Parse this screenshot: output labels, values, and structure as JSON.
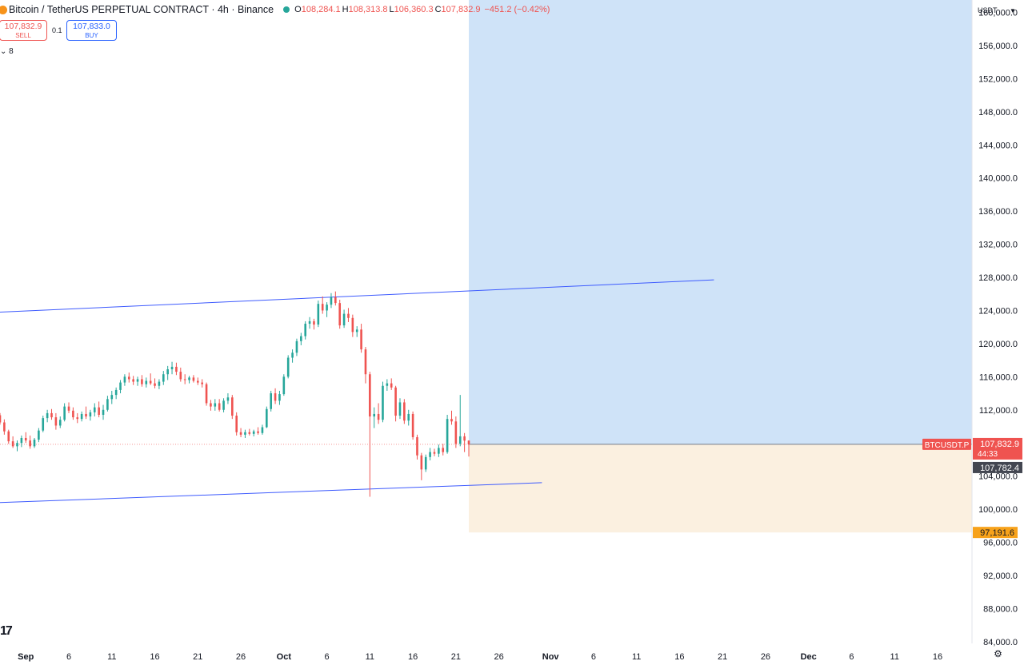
{
  "header": {
    "title": "Bitcoin / TetherUS PERPETUAL CONTRACT · 4h · Binance",
    "open_label": "O",
    "open": "108,284.1",
    "high_label": "H",
    "high": "108,313.8",
    "low_label": "L",
    "low": "106,360.3",
    "close_label": "C",
    "close": "107,832.9",
    "change": "−451.2 (−0.42%)"
  },
  "trade": {
    "sell_price": "107,832.9",
    "sell_label": "SELL",
    "quantity": "0.1",
    "buy_price": "107,833.0",
    "buy_label": "BUY"
  },
  "indicator_toggle": "8",
  "currency": "USDT",
  "colors": {
    "up": "#26a69a",
    "down": "#ef5350",
    "trendline": "#3d5afe",
    "profit_zone": "#cfe3f8",
    "loss_zone": "#fbf0e0"
  },
  "chart_data": {
    "type": "candlestick",
    "symbol": "BTCUSDT.P",
    "y_axis": {
      "labels": [
        "160,000.0",
        "156,000.0",
        "152,000.0",
        "148,000.0",
        "144,000.0",
        "140,000.0",
        "136,000.0",
        "132,000.0",
        "128,000.0",
        "124,000.0",
        "120,000.0",
        "116,000.0",
        "112,000.0",
        "108,000.0",
        "104,000.0",
        "100,000.0",
        "96,000.0",
        "92,000.0",
        "88,000.0",
        "84,000.0"
      ],
      "values": [
        160000,
        156000,
        152000,
        148000,
        144000,
        140000,
        136000,
        132000,
        128000,
        124000,
        120000,
        116000,
        112000,
        108000,
        104000,
        100000,
        96000,
        92000,
        88000,
        84000
      ]
    },
    "ylim": [
      83500,
      161500
    ],
    "x_axis": {
      "labels": [
        "Sep",
        "6",
        "11",
        "16",
        "21",
        "26",
        "Oct",
        "6",
        "11",
        "16",
        "21",
        "26",
        "Nov",
        "6",
        "11",
        "16",
        "21",
        "26",
        "Dec",
        "6",
        "11",
        "16"
      ],
      "dates": [
        "2025-09-01",
        "2025-09-06",
        "2025-09-11",
        "2025-09-16",
        "2025-09-21",
        "2025-09-26",
        "2025-10-01",
        "2025-10-06",
        "2025-10-11",
        "2025-10-16",
        "2025-10-21",
        "2025-10-26",
        "2025-11-01",
        "2025-11-06",
        "2025-11-11",
        "2025-11-16",
        "2025-11-21",
        "2025-11-26",
        "2025-12-01",
        "2025-12-06",
        "2025-12-11",
        "2025-12-16"
      ]
    },
    "xlim": [
      "2025-08-29",
      "2025-12-20"
    ],
    "last_price": "107,832.9",
    "countdown": "44:33",
    "crosshair_price": "107,782.4",
    "stop_price": "97,191.6",
    "position": {
      "entry": 107832.9,
      "target": 161500,
      "stop": 97191.6,
      "start": "2025-10-22T12:00",
      "end": "2025-12-20"
    },
    "trendlines": [
      {
        "start": [
          "2025-08-29",
          123800
        ],
        "end": [
          "2025-11-20",
          127700
        ]
      },
      {
        "start": [
          "2025-08-29",
          100800
        ],
        "end": [
          "2025-10-31",
          103200
        ]
      }
    ],
    "candles": [
      {
        "t": "2025-08-29T00:00",
        "o": 111350,
        "h": 111620,
        "l": 110220,
        "c": 110480
      },
      {
        "t": "2025-08-29T12:00",
        "o": 110480,
        "h": 110850,
        "l": 109000,
        "c": 109400
      },
      {
        "t": "2025-08-30T00:00",
        "o": 109400,
        "h": 109600,
        "l": 107900,
        "c": 108200
      },
      {
        "t": "2025-08-30T12:00",
        "o": 108200,
        "h": 108800,
        "l": 107400,
        "c": 107600
      },
      {
        "t": "2025-08-31T00:00",
        "o": 107600,
        "h": 108300,
        "l": 107000,
        "c": 108000
      },
      {
        "t": "2025-08-31T12:00",
        "o": 108000,
        "h": 108900,
        "l": 107500,
        "c": 108600
      },
      {
        "t": "2025-09-01T00:00",
        "o": 108600,
        "h": 109300,
        "l": 108000,
        "c": 108300
      },
      {
        "t": "2025-09-01T12:00",
        "o": 108300,
        "h": 108900,
        "l": 107300,
        "c": 107600
      },
      {
        "t": "2025-09-02T00:00",
        "o": 107600,
        "h": 108600,
        "l": 107400,
        "c": 108400
      },
      {
        "t": "2025-09-02T12:00",
        "o": 108400,
        "h": 109800,
        "l": 108100,
        "c": 109500
      },
      {
        "t": "2025-09-03T00:00",
        "o": 109500,
        "h": 111300,
        "l": 109300,
        "c": 111000
      },
      {
        "t": "2025-09-03T12:00",
        "o": 111000,
        "h": 112000,
        "l": 110500,
        "c": 111600
      },
      {
        "t": "2025-09-04T00:00",
        "o": 111600,
        "h": 112100,
        "l": 110800,
        "c": 111100
      },
      {
        "t": "2025-09-04T12:00",
        "o": 111100,
        "h": 111600,
        "l": 109600,
        "c": 110100
      },
      {
        "t": "2025-09-05T00:00",
        "o": 110100,
        "h": 111200,
        "l": 109800,
        "c": 110800
      },
      {
        "t": "2025-09-05T12:00",
        "o": 110800,
        "h": 112800,
        "l": 110600,
        "c": 112400
      },
      {
        "t": "2025-09-06T00:00",
        "o": 112400,
        "h": 112900,
        "l": 111600,
        "c": 111900
      },
      {
        "t": "2025-09-06T12:00",
        "o": 111900,
        "h": 112300,
        "l": 110800,
        "c": 111100
      },
      {
        "t": "2025-09-07T00:00",
        "o": 111100,
        "h": 111600,
        "l": 110400,
        "c": 110900
      },
      {
        "t": "2025-09-07T12:00",
        "o": 110900,
        "h": 111800,
        "l": 110600,
        "c": 111500
      },
      {
        "t": "2025-09-08T00:00",
        "o": 111500,
        "h": 112400,
        "l": 110900,
        "c": 111200
      },
      {
        "t": "2025-09-08T12:00",
        "o": 111200,
        "h": 112000,
        "l": 110700,
        "c": 111700
      },
      {
        "t": "2025-09-09T00:00",
        "o": 111700,
        "h": 112800,
        "l": 111200,
        "c": 112300
      },
      {
        "t": "2025-09-09T12:00",
        "o": 112300,
        "h": 113000,
        "l": 111100,
        "c": 111400
      },
      {
        "t": "2025-09-10T00:00",
        "o": 111400,
        "h": 112600,
        "l": 110800,
        "c": 112000
      },
      {
        "t": "2025-09-10T12:00",
        "o": 112000,
        "h": 113700,
        "l": 111800,
        "c": 113300
      },
      {
        "t": "2025-09-11T00:00",
        "o": 113300,
        "h": 114300,
        "l": 112700,
        "c": 113800
      },
      {
        "t": "2025-09-11T12:00",
        "o": 113800,
        "h": 114700,
        "l": 113300,
        "c": 114400
      },
      {
        "t": "2025-09-12T00:00",
        "o": 114400,
        "h": 115600,
        "l": 114000,
        "c": 115300
      },
      {
        "t": "2025-09-12T12:00",
        "o": 115300,
        "h": 116300,
        "l": 114900,
        "c": 116000
      },
      {
        "t": "2025-09-13T00:00",
        "o": 116000,
        "h": 116500,
        "l": 115300,
        "c": 115700
      },
      {
        "t": "2025-09-13T12:00",
        "o": 115700,
        "h": 116100,
        "l": 115000,
        "c": 115400
      },
      {
        "t": "2025-09-14T00:00",
        "o": 115400,
        "h": 116000,
        "l": 114900,
        "c": 115700
      },
      {
        "t": "2025-09-14T12:00",
        "o": 115700,
        "h": 116200,
        "l": 114800,
        "c": 115100
      },
      {
        "t": "2025-09-15T00:00",
        "o": 115100,
        "h": 115900,
        "l": 114700,
        "c": 115500
      },
      {
        "t": "2025-09-15T12:00",
        "o": 115500,
        "h": 116400,
        "l": 115000,
        "c": 115200
      },
      {
        "t": "2025-09-16T00:00",
        "o": 115200,
        "h": 115800,
        "l": 114600,
        "c": 114900
      },
      {
        "t": "2025-09-16T12:00",
        "o": 114900,
        "h": 115700,
        "l": 114500,
        "c": 115400
      },
      {
        "t": "2025-09-17T00:00",
        "o": 115400,
        "h": 116700,
        "l": 115000,
        "c": 116300
      },
      {
        "t": "2025-09-17T12:00",
        "o": 116300,
        "h": 117300,
        "l": 115600,
        "c": 116900
      },
      {
        "t": "2025-09-18T00:00",
        "o": 116900,
        "h": 117800,
        "l": 116300,
        "c": 117200
      },
      {
        "t": "2025-09-18T12:00",
        "o": 117200,
        "h": 117700,
        "l": 116200,
        "c": 116600
      },
      {
        "t": "2025-09-19T00:00",
        "o": 116600,
        "h": 117100,
        "l": 115400,
        "c": 115700
      },
      {
        "t": "2025-09-19T12:00",
        "o": 115700,
        "h": 116300,
        "l": 115100,
        "c": 115600
      },
      {
        "t": "2025-09-20T00:00",
        "o": 115600,
        "h": 116100,
        "l": 115200,
        "c": 115900
      },
      {
        "t": "2025-09-20T12:00",
        "o": 115900,
        "h": 116200,
        "l": 115300,
        "c": 115500
      },
      {
        "t": "2025-09-21T00:00",
        "o": 115500,
        "h": 115900,
        "l": 115000,
        "c": 115300
      },
      {
        "t": "2025-09-21T12:00",
        "o": 115300,
        "h": 115700,
        "l": 114700,
        "c": 115100
      },
      {
        "t": "2025-09-22T00:00",
        "o": 115100,
        "h": 115300,
        "l": 112500,
        "c": 112800
      },
      {
        "t": "2025-09-22T12:00",
        "o": 112800,
        "h": 113200,
        "l": 111900,
        "c": 112400
      },
      {
        "t": "2025-09-23T00:00",
        "o": 112400,
        "h": 113300,
        "l": 111900,
        "c": 112800
      },
      {
        "t": "2025-09-23T12:00",
        "o": 112800,
        "h": 113300,
        "l": 111800,
        "c": 112000
      },
      {
        "t": "2025-09-24T00:00",
        "o": 112000,
        "h": 113400,
        "l": 111700,
        "c": 113100
      },
      {
        "t": "2025-09-24T12:00",
        "o": 113100,
        "h": 114000,
        "l": 112700,
        "c": 113500
      },
      {
        "t": "2025-09-25T00:00",
        "o": 113500,
        "h": 113800,
        "l": 110900,
        "c": 111300
      },
      {
        "t": "2025-09-25T12:00",
        "o": 111300,
        "h": 111700,
        "l": 108900,
        "c": 109300
      },
      {
        "t": "2025-09-26T00:00",
        "o": 109300,
        "h": 109800,
        "l": 108700,
        "c": 109000
      },
      {
        "t": "2025-09-26T12:00",
        "o": 109000,
        "h": 109600,
        "l": 108600,
        "c": 109300
      },
      {
        "t": "2025-09-27T00:00",
        "o": 109300,
        "h": 109700,
        "l": 108900,
        "c": 109100
      },
      {
        "t": "2025-09-27T12:00",
        "o": 109100,
        "h": 109600,
        "l": 108800,
        "c": 109400
      },
      {
        "t": "2025-09-28T00:00",
        "o": 109400,
        "h": 109900,
        "l": 109000,
        "c": 109200
      },
      {
        "t": "2025-09-28T12:00",
        "o": 109200,
        "h": 110200,
        "l": 109000,
        "c": 109900
      },
      {
        "t": "2025-09-29T00:00",
        "o": 109900,
        "h": 112400,
        "l": 109800,
        "c": 112100
      },
      {
        "t": "2025-09-29T12:00",
        "o": 112100,
        "h": 114300,
        "l": 111800,
        "c": 114000
      },
      {
        "t": "2025-09-30T00:00",
        "o": 114000,
        "h": 114600,
        "l": 112700,
        "c": 113100
      },
      {
        "t": "2025-09-30T12:00",
        "o": 113100,
        "h": 114300,
        "l": 112600,
        "c": 113900
      },
      {
        "t": "2025-10-01T00:00",
        "o": 113900,
        "h": 116300,
        "l": 113700,
        "c": 116000
      },
      {
        "t": "2025-10-01T12:00",
        "o": 116000,
        "h": 118600,
        "l": 115800,
        "c": 118300
      },
      {
        "t": "2025-10-02T00:00",
        "o": 118300,
        "h": 119300,
        "l": 117700,
        "c": 118900
      },
      {
        "t": "2025-10-02T12:00",
        "o": 118900,
        "h": 120600,
        "l": 118500,
        "c": 120300
      },
      {
        "t": "2025-10-03T00:00",
        "o": 120300,
        "h": 121300,
        "l": 119800,
        "c": 120900
      },
      {
        "t": "2025-10-03T12:00",
        "o": 120900,
        "h": 122700,
        "l": 120500,
        "c": 122400
      },
      {
        "t": "2025-10-04T00:00",
        "o": 122400,
        "h": 123200,
        "l": 121800,
        "c": 122700
      },
      {
        "t": "2025-10-04T12:00",
        "o": 122700,
        "h": 123000,
        "l": 121700,
        "c": 122300
      },
      {
        "t": "2025-10-05T00:00",
        "o": 122300,
        "h": 125200,
        "l": 122000,
        "c": 124800
      },
      {
        "t": "2025-10-05T12:00",
        "o": 124800,
        "h": 125700,
        "l": 123600,
        "c": 124000
      },
      {
        "t": "2025-10-06T00:00",
        "o": 124000,
        "h": 125000,
        "l": 123200,
        "c": 124700
      },
      {
        "t": "2025-10-06T12:00",
        "o": 124700,
        "h": 126100,
        "l": 124300,
        "c": 125600
      },
      {
        "t": "2025-10-07T00:00",
        "o": 125600,
        "h": 126300,
        "l": 124600,
        "c": 124900
      },
      {
        "t": "2025-10-07T12:00",
        "o": 124900,
        "h": 125300,
        "l": 121800,
        "c": 122200
      },
      {
        "t": "2025-10-08T00:00",
        "o": 122200,
        "h": 124100,
        "l": 121900,
        "c": 123600
      },
      {
        "t": "2025-10-08T12:00",
        "o": 123600,
        "h": 124300,
        "l": 122600,
        "c": 123100
      },
      {
        "t": "2025-10-09T00:00",
        "o": 123100,
        "h": 123500,
        "l": 120800,
        "c": 121400
      },
      {
        "t": "2025-10-09T12:00",
        "o": 121400,
        "h": 122100,
        "l": 120800,
        "c": 121700
      },
      {
        "t": "2025-10-10T00:00",
        "o": 121700,
        "h": 122400,
        "l": 118900,
        "c": 119300
      },
      {
        "t": "2025-10-10T12:00",
        "o": 119300,
        "h": 119600,
        "l": 115200,
        "c": 116300
      },
      {
        "t": "2025-10-11T00:00",
        "o": 116300,
        "h": 116600,
        "l": 101500,
        "c": 111200
      },
      {
        "t": "2025-10-11T12:00",
        "o": 111200,
        "h": 112300,
        "l": 109800,
        "c": 111500
      },
      {
        "t": "2025-10-12T00:00",
        "o": 111500,
        "h": 112800,
        "l": 110300,
        "c": 110800
      },
      {
        "t": "2025-10-12T12:00",
        "o": 110800,
        "h": 115400,
        "l": 110500,
        "c": 114900
      },
      {
        "t": "2025-10-13T00:00",
        "o": 114900,
        "h": 115700,
        "l": 114300,
        "c": 115200
      },
      {
        "t": "2025-10-13T12:00",
        "o": 115200,
        "h": 115800,
        "l": 114400,
        "c": 114700
      },
      {
        "t": "2025-10-14T00:00",
        "o": 114700,
        "h": 114900,
        "l": 110600,
        "c": 111300
      },
      {
        "t": "2025-10-14T12:00",
        "o": 111300,
        "h": 113400,
        "l": 110900,
        "c": 112900
      },
      {
        "t": "2025-10-15T00:00",
        "o": 112900,
        "h": 113300,
        "l": 110300,
        "c": 110700
      },
      {
        "t": "2025-10-15T12:00",
        "o": 110700,
        "h": 112000,
        "l": 110100,
        "c": 111500
      },
      {
        "t": "2025-10-16T00:00",
        "o": 111500,
        "h": 111800,
        "l": 108400,
        "c": 108700
      },
      {
        "t": "2025-10-16T12:00",
        "o": 108700,
        "h": 109000,
        "l": 106000,
        "c": 106500
      },
      {
        "t": "2025-10-17T00:00",
        "o": 106500,
        "h": 106800,
        "l": 103500,
        "c": 104800
      },
      {
        "t": "2025-10-17T12:00",
        "o": 104800,
        "h": 106600,
        "l": 104500,
        "c": 106300
      },
      {
        "t": "2025-10-18T00:00",
        "o": 106300,
        "h": 107400,
        "l": 105900,
        "c": 106900
      },
      {
        "t": "2025-10-18T12:00",
        "o": 106900,
        "h": 107300,
        "l": 106400,
        "c": 106700
      },
      {
        "t": "2025-10-19T00:00",
        "o": 106700,
        "h": 107800,
        "l": 106300,
        "c": 107400
      },
      {
        "t": "2025-10-19T12:00",
        "o": 107400,
        "h": 107900,
        "l": 106500,
        "c": 106900
      },
      {
        "t": "2025-10-20T00:00",
        "o": 106900,
        "h": 111400,
        "l": 106700,
        "c": 110900
      },
      {
        "t": "2025-10-20T12:00",
        "o": 110900,
        "h": 111900,
        "l": 110200,
        "c": 110600
      },
      {
        "t": "2025-10-21T00:00",
        "o": 110600,
        "h": 111200,
        "l": 107400,
        "c": 107900
      },
      {
        "t": "2025-10-21T12:00",
        "o": 107900,
        "h": 113800,
        "l": 107600,
        "c": 108800
      },
      {
        "t": "2025-10-22T00:00",
        "o": 108800,
        "h": 109200,
        "l": 106900,
        "c": 108284.1
      },
      {
        "t": "2025-10-22T12:00",
        "o": 108284.1,
        "h": 108313.8,
        "l": 106360.3,
        "c": 107832.9
      }
    ]
  }
}
